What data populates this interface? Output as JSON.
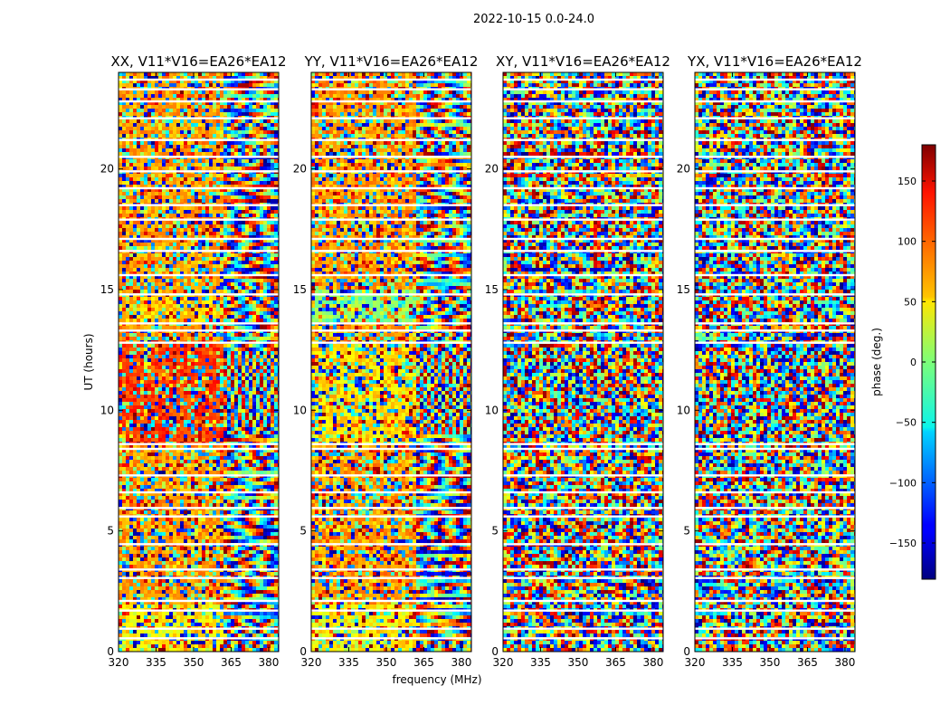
{
  "figure": {
    "suptitle": "2022-10-15 0.0-24.0"
  },
  "chart_data": [
    {
      "type": "heatmap",
      "title": "XX, V11*V16=EA26*EA12",
      "xlabel": "",
      "ylabel": "UT (hours)",
      "xlim": [
        320,
        384
      ],
      "ylim": [
        0,
        24
      ],
      "xticks": [
        320,
        335,
        350,
        365,
        380
      ],
      "yticks": [
        0,
        5,
        10,
        15,
        20
      ],
      "value": "phase (deg.)",
      "zlim": [
        -180,
        180
      ]
    },
    {
      "type": "heatmap",
      "title": "YY, V11*V16=EA26*EA12",
      "xlabel": "frequency (MHz)",
      "ylabel": "",
      "xlim": [
        320,
        384
      ],
      "ylim": [
        0,
        24
      ],
      "xticks": [
        320,
        335,
        350,
        365,
        380
      ],
      "yticks": [
        0,
        5,
        10,
        15,
        20
      ],
      "value": "phase (deg.)",
      "zlim": [
        -180,
        180
      ]
    },
    {
      "type": "heatmap",
      "title": "XY, V11*V16=EA26*EA12",
      "xlabel": "",
      "ylabel": "",
      "xlim": [
        320,
        384
      ],
      "ylim": [
        0,
        24
      ],
      "xticks": [
        320,
        335,
        350,
        365,
        380
      ],
      "yticks": [
        0,
        5,
        10,
        15,
        20
      ],
      "value": "phase (deg.)",
      "zlim": [
        -180,
        180
      ]
    },
    {
      "type": "heatmap",
      "title": "YX, V11*V16=EA26*EA12",
      "xlabel": "",
      "ylabel": "",
      "xlim": [
        320,
        384
      ],
      "ylim": [
        0,
        24
      ],
      "xticks": [
        320,
        335,
        350,
        365,
        380
      ],
      "yticks": [
        0,
        5,
        10,
        15,
        20
      ],
      "value": "phase (deg.)",
      "zlim": [
        -180,
        180
      ]
    }
  ],
  "colorbar": {
    "label": "phase (deg.)",
    "range": [
      -180,
      180
    ],
    "ticks": [
      150,
      100,
      50,
      0,
      -50,
      -100,
      -150
    ],
    "tick_labels": [
      "150",
      "100",
      "50",
      "0",
      "−50",
      "−100",
      "−150"
    ],
    "colormap": "jet"
  },
  "data_gaps_ut_hours": [
    0.55,
    0.95,
    1.7,
    2.1,
    3.05,
    3.4,
    4.45,
    5.6,
    5.95,
    6.6,
    7.3,
    8.4,
    8.6,
    12.8,
    13.3,
    13.6,
    14.8,
    15.6,
    16.6,
    17.1,
    17.9,
    18.5,
    19.2,
    19.9,
    20.5,
    21.2,
    22.1,
    22.8,
    23.3,
    23.7
  ]
}
